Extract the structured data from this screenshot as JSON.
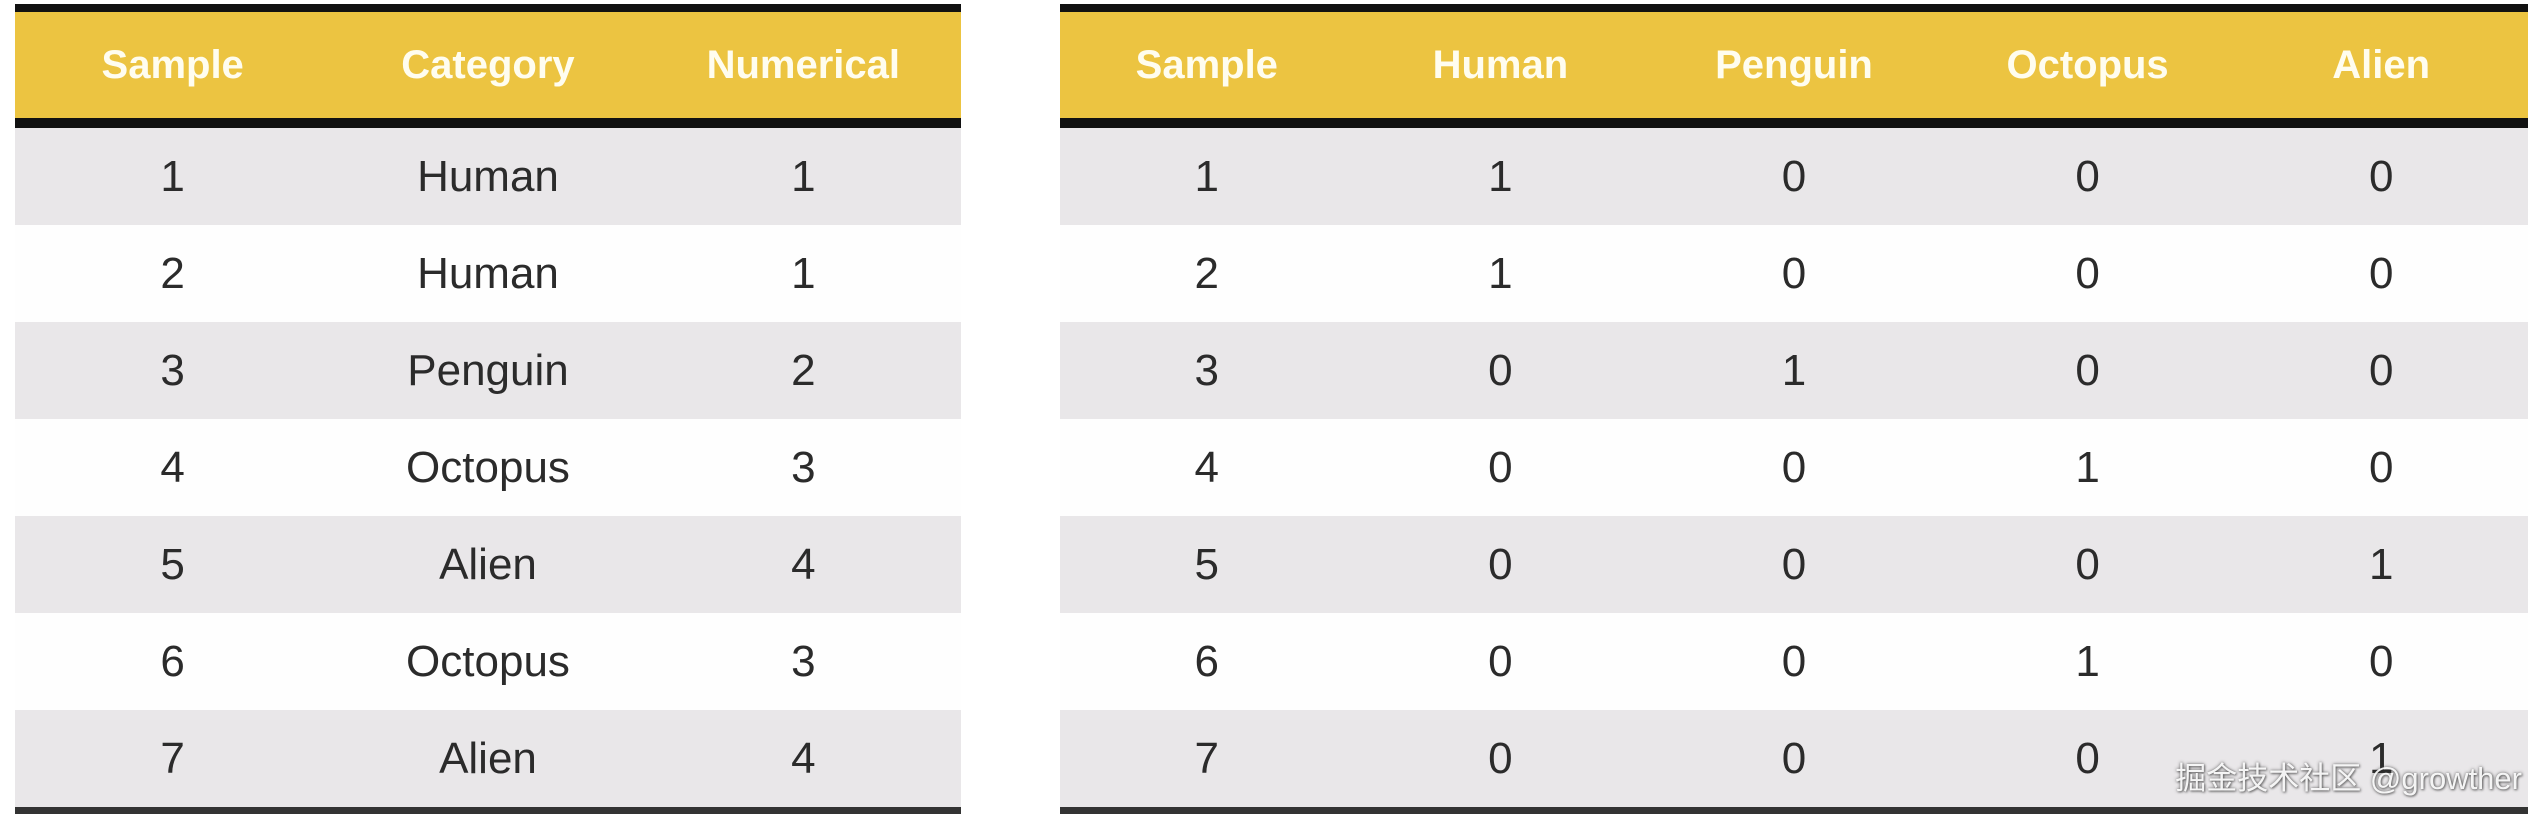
{
  "chart_data": [
    {
      "type": "table",
      "columns": [
        "Sample",
        "Category",
        "Numerical"
      ],
      "rows": [
        [
          "1",
          "Human",
          "1"
        ],
        [
          "2",
          "Human",
          "1"
        ],
        [
          "3",
          "Penguin",
          "2"
        ],
        [
          "4",
          "Octopus",
          "3"
        ],
        [
          "5",
          "Alien",
          "4"
        ],
        [
          "6",
          "Octopus",
          "3"
        ],
        [
          "7",
          "Alien",
          "4"
        ]
      ]
    },
    {
      "type": "table",
      "columns": [
        "Sample",
        "Human",
        "Penguin",
        "Octopus",
        "Alien"
      ],
      "rows": [
        [
          "1",
          "1",
          "0",
          "0",
          "0"
        ],
        [
          "2",
          "1",
          "0",
          "0",
          "0"
        ],
        [
          "3",
          "0",
          "1",
          "0",
          "0"
        ],
        [
          "4",
          "0",
          "0",
          "1",
          "0"
        ],
        [
          "5",
          "0",
          "0",
          "0",
          "1"
        ],
        [
          "6",
          "0",
          "0",
          "1",
          "0"
        ],
        [
          "7",
          "0",
          "0",
          "0",
          "1"
        ]
      ]
    }
  ],
  "watermark": "掘金技术社区 @growther",
  "colors": {
    "header_bg": "#ECC441",
    "header_text": "#FFFDEF",
    "row_stripe": "#E9E7E9",
    "row_white": "#FEFEFE",
    "border": "#111111",
    "cell_text": "#2B2B2B"
  }
}
